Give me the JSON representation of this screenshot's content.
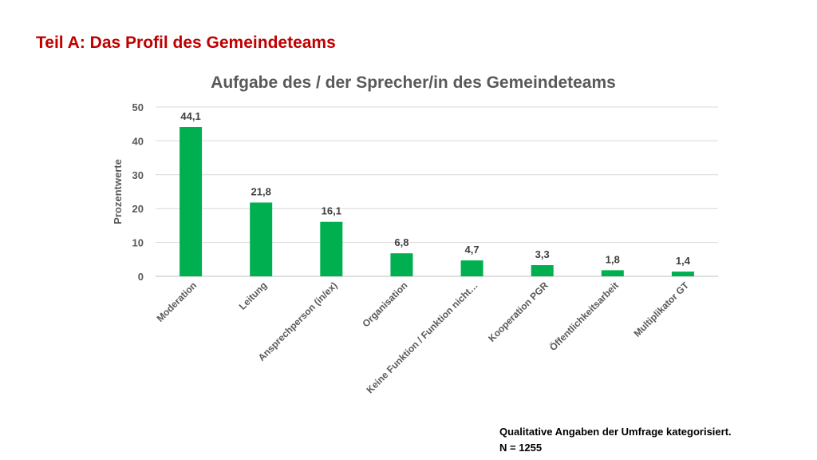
{
  "slide": {
    "title": "Teil A: Das Profil des Gemeindeteams"
  },
  "footnote": {
    "line1": "Qualitative Angaben der Umfrage kategorisiert.",
    "line2": "N = 1255"
  },
  "chart_data": {
    "type": "bar",
    "title": "Aufgabe des / der Sprecher/in des Gemeindeteams",
    "xlabel": "",
    "ylabel": "Prozentwerte",
    "ylim": [
      0,
      50
    ],
    "yticks": [
      0,
      10,
      20,
      30,
      40,
      50
    ],
    "grid": true,
    "legend": "none",
    "bar_color": "#00b050",
    "categories": [
      "Moderation",
      "Leitung",
      "Ansprechperson (in/ex)",
      "Organisation",
      "Keine Funktion / Funktion nicht…",
      "Kooperation PGR",
      "Öffentlichkeitsarbeit",
      "Multiplikator GT"
    ],
    "values": [
      44.1,
      21.8,
      16.1,
      6.8,
      4.7,
      3.3,
      1.8,
      1.4
    ],
    "data_labels": [
      "44,1",
      "21,8",
      "16,1",
      "6,8",
      "4,7",
      "3,3",
      "1,8",
      "1,4"
    ]
  }
}
